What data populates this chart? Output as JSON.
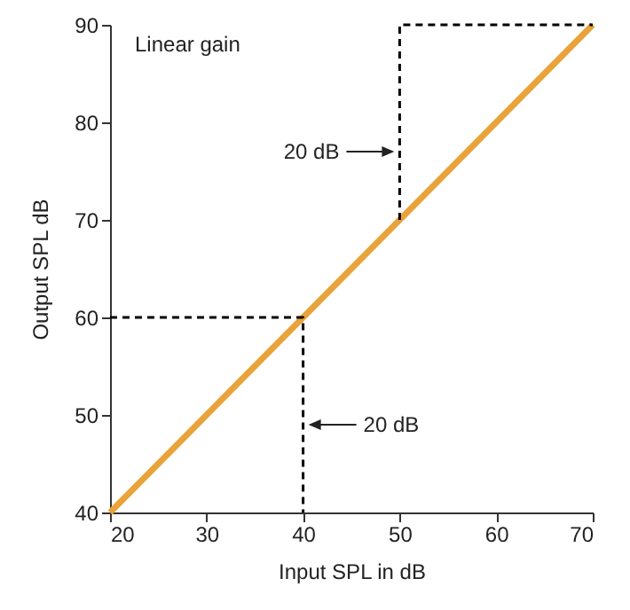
{
  "chart_data": {
    "type": "line",
    "xlabel": "Input SPL in dB",
    "ylabel": "Output SPL dB",
    "xlim": [
      20,
      70
    ],
    "xticks": [
      20,
      30,
      40,
      50,
      60,
      70
    ],
    "ylim": [
      40,
      90
    ],
    "yticks": [
      40,
      50,
      60,
      70,
      80,
      90
    ],
    "grid": false,
    "marker": "none",
    "series": [
      {
        "color": "#e8a33a",
        "line_style": "solid",
        "x": [
          20,
          70
        ],
        "values": [
          40,
          90
        ]
      },
      {
        "color": "#000000",
        "line_style": "dashed",
        "x": [
          20,
          40,
          40
        ],
        "values": [
          60,
          60,
          40
        ]
      },
      {
        "color": "#000000",
        "line_style": "dashed",
        "x": [
          50,
          50,
          70
        ],
        "values": [
          70,
          90,
          90
        ]
      }
    ],
    "annotations": [
      "Linear gain",
      {
        "text": "20 dB",
        "x": 50,
        "y": 77
      },
      {
        "text": "20 dB",
        "x": 40,
        "y": 49
      }
    ]
  }
}
